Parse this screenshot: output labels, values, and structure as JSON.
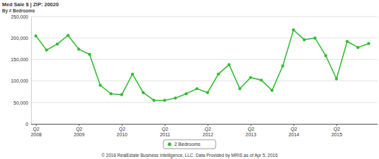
{
  "chart_data": {
    "type": "line",
    "title": "Med Sale $ | ZIP: 20020",
    "subtitle": "By # Bedrooms",
    "categories": [
      "Q2 2008",
      null,
      null,
      null,
      "Q2 2009",
      null,
      null,
      null,
      "Q2 2010",
      null,
      null,
      null,
      "Q2 2011",
      null,
      null,
      null,
      "Q2 2012",
      null,
      null,
      null,
      "Q2 2013",
      null,
      null,
      null,
      "Q2 2014",
      null,
      null,
      null,
      "Q2 2015",
      null,
      null,
      null
    ],
    "series": [
      {
        "name": "2 Bedrooms",
        "color": "#33bb33",
        "marker": "circle",
        "values": [
          205000,
          172000,
          186000,
          206000,
          174000,
          162000,
          90000,
          70000,
          68000,
          116000,
          73000,
          55000,
          55000,
          60000,
          70000,
          82000,
          73000,
          116000,
          138000,
          82000,
          108000,
          102000,
          78000,
          135000,
          219000,
          196000,
          200000,
          159000,
          105000,
          192000,
          178000,
          187000
        ]
      }
    ],
    "ylim": [
      0,
      250000
    ],
    "yticks": [
      0,
      {
        "value": 50000,
        "label": "50,000"
      },
      {
        "value": 100000,
        "label": "100,000"
      },
      {
        "value": 150000,
        "label": "150,000"
      },
      {
        "value": 200000,
        "label": "200,000"
      },
      {
        "value": 250000,
        "label": "250,000"
      }
    ],
    "grid": true,
    "legend": "bottom",
    "annotations": [
      "© 2016 RealEstate Business Intelligence, LLC. Data Provided by MRIS as of Apr 5, 2016"
    ]
  }
}
